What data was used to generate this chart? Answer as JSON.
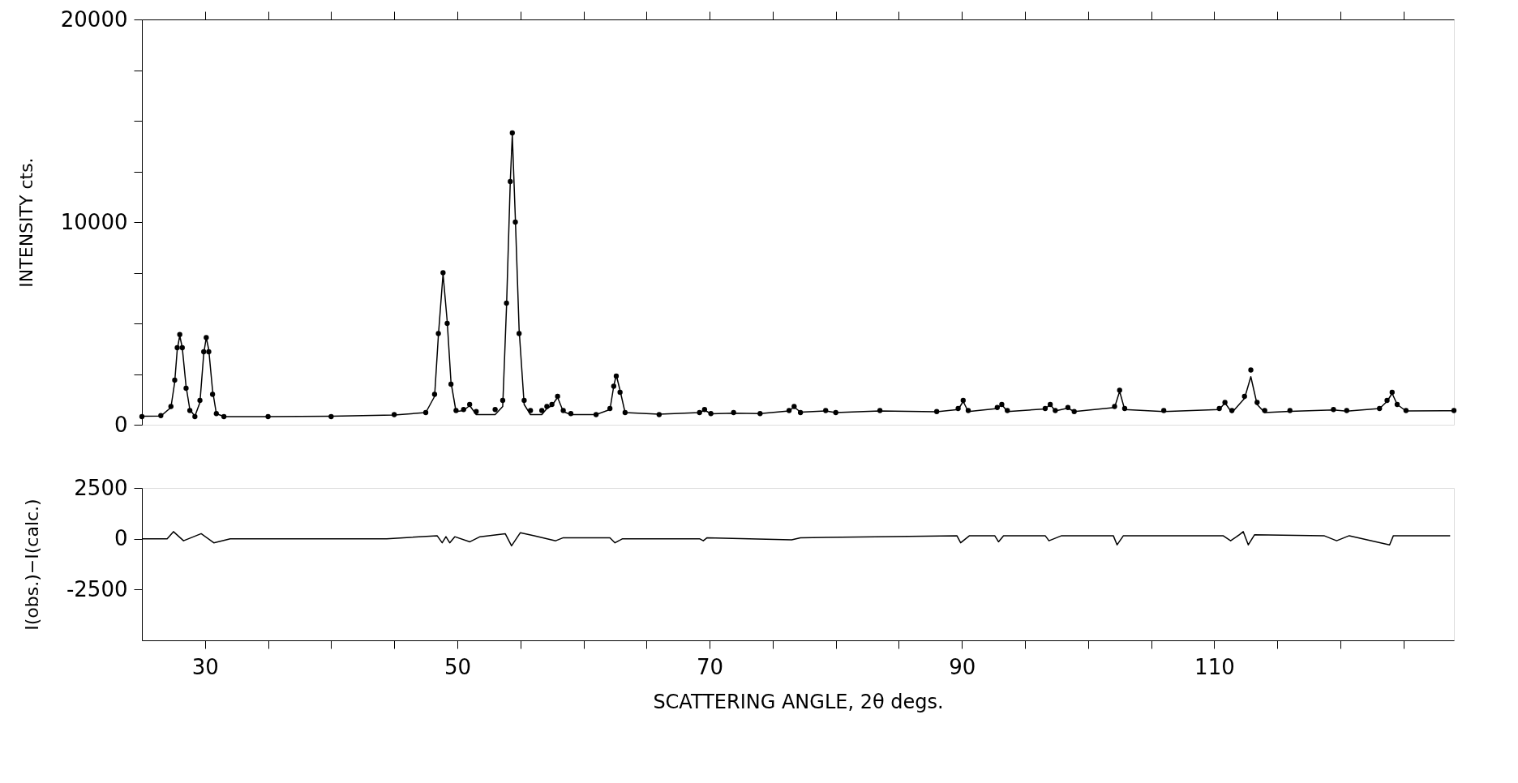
{
  "chart_data": [
    {
      "type": "scatter",
      "ylabel": "INTENSITY  cts.",
      "line_style": "solid",
      "grid": false,
      "tick_labels": "y",
      "xlim": [
        25,
        129
      ],
      "ylim": [
        0,
        20000
      ],
      "xticks": [
        30,
        {
          "value": 35,
          "label": null
        },
        {
          "value": 40,
          "label": null
        },
        {
          "value": 45,
          "label": null
        },
        50,
        {
          "value": 55,
          "label": null
        },
        {
          "value": 60,
          "label": null
        },
        {
          "value": 65,
          "label": null
        },
        70,
        {
          "value": 75,
          "label": null
        },
        {
          "value": 80,
          "label": null
        },
        {
          "value": 85,
          "label": null
        },
        90,
        {
          "value": 95,
          "label": null
        },
        {
          "value": 100,
          "label": null
        },
        {
          "value": 105,
          "label": null
        },
        110,
        {
          "value": 115,
          "label": null
        },
        {
          "value": 120,
          "label": null
        },
        {
          "value": 125,
          "label": null
        }
      ],
      "yticks": [
        0,
        {
          "value": 2500,
          "label": null
        },
        {
          "value": 5000,
          "label": null
        },
        {
          "value": 7500,
          "label": null
        },
        10000,
        {
          "value": 12500,
          "label": null
        },
        {
          "value": 15000,
          "label": null
        },
        {
          "value": 17500,
          "label": null
        },
        20000
      ],
      "x": [
        25.0,
        26.5,
        27.3,
        27.6,
        27.8,
        28.0,
        28.2,
        28.5,
        28.8,
        29.2,
        29.6,
        29.9,
        30.1,
        30.3,
        30.6,
        30.9,
        31.5,
        35,
        40,
        45,
        47.5,
        48.2,
        48.5,
        48.87,
        49.2,
        49.5,
        49.9,
        50.5,
        50.98,
        51.5,
        53.0,
        53.6,
        53.9,
        54.2,
        54.36,
        54.6,
        54.9,
        55.3,
        55.8,
        56.7,
        57.1,
        57.5,
        57.95,
        58.4,
        59,
        61,
        62.1,
        62.4,
        62.6,
        62.9,
        63.3,
        66,
        69.2,
        69.6,
        70.1,
        71.9,
        74,
        76.3,
        76.7,
        77.2,
        79.2,
        80,
        83.5,
        88,
        89.7,
        90.1,
        90.5,
        92.8,
        93.16,
        93.6,
        96.6,
        97.0,
        97.4,
        98.4,
        98.9,
        102.1,
        102.5,
        102.9,
        106,
        110.4,
        110.85,
        111.4,
        112.4,
        112.9,
        113.4,
        114,
        116,
        119.45,
        120.5,
        123.1,
        123.7,
        124.1,
        124.5,
        125.2,
        129
      ],
      "series": [
        {
          "type": "scatter",
          "color": "#000000",
          "values": [
            400,
            450,
            900,
            2200,
            3800,
            4450,
            3800,
            1800,
            700,
            400,
            1200,
            3600,
            4300,
            3600,
            1500,
            550,
            400,
            400,
            400,
            500,
            600,
            1500,
            4500,
            7500,
            5000,
            2000,
            700,
            750,
            1000,
            650,
            750,
            1200,
            6000,
            12000,
            14400,
            10000,
            4500,
            1200,
            700,
            700,
            900,
            1000,
            1400,
            700,
            550,
            500,
            800,
            1900,
            2400,
            1600,
            600,
            500,
            600,
            750,
            550,
            600,
            550,
            700,
            900,
            600,
            700,
            600,
            700,
            650,
            800,
            1200,
            700,
            850,
            1000,
            700,
            800,
            1000,
            700,
            850,
            650,
            900,
            1700,
            800,
            700,
            800,
            1100,
            700,
            1400,
            2700,
            1100,
            700,
            700,
            750,
            700,
            800,
            1200,
            1600,
            1000,
            700,
            700
          ]
        },
        {
          "type": "line",
          "color": "#000000",
          "values": [
            420,
            430,
            850,
            2100,
            3700,
            4400,
            3800,
            1900,
            750,
            420,
            1100,
            3500,
            4300,
            3700,
            1700,
            550,
            400,
            400,
            420,
            480,
            600,
            1400,
            4400,
            7450,
            5100,
            2100,
            650,
            700,
            950,
            500,
            500,
            900,
            5800,
            12000,
            14300,
            10200,
            4700,
            1000,
            500,
            500,
            800,
            950,
            1350,
            650,
            500,
            500,
            750,
            1900,
            2450,
            1700,
            600,
            520,
            600,
            720,
            540,
            570,
            550,
            680,
            880,
            620,
            680,
            600,
            680,
            640,
            750,
            1150,
            650,
            800,
            1000,
            650,
            780,
            1000,
            680,
            820,
            650,
            850,
            1650,
            750,
            650,
            750,
            1080,
            600,
            1300,
            2370,
            1000,
            600,
            660,
            730,
            670,
            800,
            1150,
            1550,
            1000,
            680,
            690
          ]
        }
      ]
    },
    {
      "type": "line",
      "xlabel": "SCATTERING ANGLE, 2θ  degs.",
      "ylabel": "I(obs.)−I(calc.)",
      "line_style": "solid",
      "grid": false,
      "xlim": [
        25,
        129
      ],
      "ylim": [
        -5000,
        2500
      ],
      "xticks": [
        30,
        {
          "value": 35,
          "label": null
        },
        {
          "value": 40,
          "label": null
        },
        {
          "value": 45,
          "label": null
        },
        50,
        {
          "value": 55,
          "label": null
        },
        {
          "value": 60,
          "label": null
        },
        {
          "value": 65,
          "label": null
        },
        70,
        {
          "value": 75,
          "label": null
        },
        {
          "value": 80,
          "label": null
        },
        {
          "value": 85,
          "label": null
        },
        90,
        {
          "value": 95,
          "label": null
        },
        {
          "value": 100,
          "label": null
        },
        {
          "value": 105,
          "label": null
        },
        110,
        {
          "value": 115,
          "label": null
        },
        {
          "value": 120,
          "label": null
        },
        {
          "value": 125,
          "label": null
        }
      ],
      "yticks": [
        -2500,
        0,
        2500
      ],
      "series": [
        {
          "color": "#000000",
          "x": [
            25,
            27.0,
            27.5,
            28.3,
            29.7,
            30.7,
            32,
            44.4,
            48.4,
            48.8,
            49.1,
            49.4,
            49.8,
            51.0,
            51.8,
            53.8,
            54.3,
            55.0,
            56.1,
            57.8,
            58.4,
            62.1,
            62.5,
            63.1,
            69.2,
            69.5,
            69.8,
            76.5,
            77.2,
            83.2,
            89.6,
            89.9,
            90.6,
            92.6,
            92.9,
            93.3,
            96.6,
            96.9,
            97.9,
            102.0,
            102.3,
            102.8,
            110.7,
            111.3,
            112.0,
            112.3,
            112.7,
            113.2,
            118.7,
            119.7,
            120.7,
            123.9,
            124.2,
            128.7
          ],
          "values": [
            0,
            0,
            350,
            -100,
            250,
            -200,
            0,
            0,
            150,
            -200,
            100,
            -200,
            100,
            -150,
            100,
            250,
            -350,
            300,
            150,
            -100,
            50,
            50,
            -200,
            0,
            0,
            -100,
            50,
            -50,
            50,
            100,
            150,
            -200,
            150,
            150,
            -150,
            150,
            150,
            -100,
            150,
            150,
            -300,
            150,
            150,
            -100,
            200,
            350,
            -300,
            200,
            150,
            -100,
            150,
            -300,
            150,
            150
          ]
        }
      ]
    }
  ]
}
